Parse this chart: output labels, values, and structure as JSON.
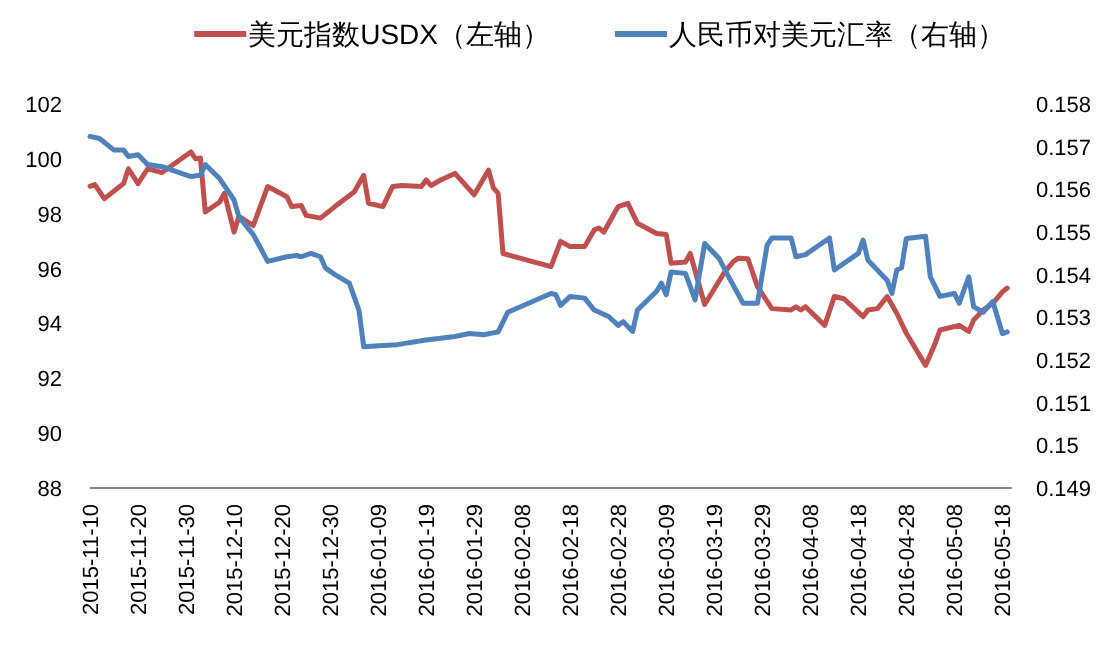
{
  "chart_data": {
    "type": "line",
    "legend": "top",
    "grid": false,
    "marker": "none",
    "line_style": "solid",
    "xlim": [
      "2015-11-10",
      "2016-05-20"
    ],
    "xticks": [
      "2015-11-10",
      "2015-11-20",
      "2015-11-30",
      "2015-12-10",
      "2015-12-20",
      "2015-12-30",
      "2016-01-09",
      "2016-01-19",
      "2016-01-29",
      "2016-02-08",
      "2016-02-18",
      "2016-02-28",
      "2016-03-09",
      "2016-03-19",
      "2016-03-29",
      "2016-04-08",
      "2016-04-18",
      "2016-04-28",
      "2016-05-08",
      "2016-05-18"
    ],
    "ylim": [
      88,
      102
    ],
    "yticks": [
      88,
      90,
      92,
      94,
      96,
      98,
      100,
      102
    ],
    "y2lim": [
      0.149,
      0.158
    ],
    "y2ticks": [
      0.149,
      0.15,
      0.151,
      0.152,
      0.153,
      0.154,
      0.155,
      0.156,
      0.157,
      0.158
    ],
    "series": [
      {
        "name": "美元指数USDX（左轴）",
        "color": "#c0504d",
        "axis": "y",
        "x": [
          "2015-11-10",
          "2015-11-11",
          "2015-11-13",
          "2015-11-17",
          "2015-11-18",
          "2015-11-20",
          "2015-11-22",
          "2015-11-25",
          "2015-12-01",
          "2015-12-02",
          "2015-12-03",
          "2015-12-04",
          "2015-12-07",
          "2015-12-08",
          "2015-12-10",
          "2015-12-11",
          "2015-12-14",
          "2015-12-17",
          "2015-12-21",
          "2015-12-22",
          "2015-12-24",
          "2015-12-25",
          "2015-12-28",
          "2015-12-31",
          "2016-01-04",
          "2016-01-06",
          "2016-01-07",
          "2016-01-10",
          "2016-01-12",
          "2016-01-14",
          "2016-01-18",
          "2016-01-19",
          "2016-01-20",
          "2016-01-22",
          "2016-01-25",
          "2016-01-29",
          "2016-02-01",
          "2016-02-02",
          "2016-02-03",
          "2016-02-04",
          "2016-02-14",
          "2016-02-16",
          "2016-02-18",
          "2016-02-21",
          "2016-02-23",
          "2016-02-24",
          "2016-02-25",
          "2016-02-28",
          "2016-03-01",
          "2016-03-03",
          "2016-03-07",
          "2016-03-09",
          "2016-03-10",
          "2016-03-13",
          "2016-03-14",
          "2016-03-17",
          "2016-03-21",
          "2016-03-23",
          "2016-03-24",
          "2016-03-26",
          "2016-03-28",
          "2016-03-31",
          "2016-04-04",
          "2016-04-05",
          "2016-04-06",
          "2016-04-07",
          "2016-04-11",
          "2016-04-13",
          "2016-04-15",
          "2016-04-19",
          "2016-04-20",
          "2016-04-22",
          "2016-04-24",
          "2016-04-26",
          "2016-04-28",
          "2016-05-02",
          "2016-05-04",
          "2016-05-05",
          "2016-05-09",
          "2016-05-11",
          "2016-05-12",
          "2016-05-14",
          "2016-05-16",
          "2016-05-18",
          "2016-05-19"
        ],
        "values": [
          99.0,
          99.06,
          98.55,
          99.1,
          99.64,
          99.1,
          99.64,
          99.5,
          100.25,
          100.0,
          100.03,
          98.06,
          98.43,
          98.74,
          97.33,
          97.9,
          97.57,
          98.99,
          98.62,
          98.26,
          98.3,
          97.94,
          97.84,
          98.26,
          98.79,
          99.4,
          98.38,
          98.26,
          98.99,
          99.03,
          98.99,
          99.23,
          99.03,
          99.23,
          99.47,
          98.69,
          99.59,
          98.94,
          98.74,
          96.55,
          96.07,
          96.99,
          96.8,
          96.8,
          97.41,
          97.48,
          97.33,
          98.26,
          98.38,
          97.65,
          97.28,
          97.24,
          96.19,
          96.24,
          96.55,
          94.69,
          95.83,
          96.26,
          96.38,
          96.36,
          95.34,
          94.54,
          94.49,
          94.61,
          94.49,
          94.61,
          93.93,
          94.98,
          94.9,
          94.25,
          94.49,
          94.54,
          94.98,
          94.37,
          93.64,
          92.47,
          93.27,
          93.76,
          93.93,
          93.71,
          94.12,
          94.49,
          94.73,
          95.15,
          95.29
        ]
      },
      {
        "name": "人民币对美元汇率（右轴）",
        "color": "#4f81bd",
        "axis": "y2",
        "x": [
          "2015-11-10",
          "2015-11-12",
          "2015-11-15",
          "2015-11-17",
          "2015-11-18",
          "2015-11-20",
          "2015-11-22",
          "2015-11-25",
          "2015-12-01",
          "2015-12-03",
          "2015-12-04",
          "2015-12-07",
          "2015-12-10",
          "2015-12-11",
          "2015-12-14",
          "2015-12-15",
          "2015-12-17",
          "2015-12-21",
          "2015-12-23",
          "2015-12-24",
          "2015-12-26",
          "2015-12-28",
          "2015-12-29",
          "2015-12-31",
          "2016-01-03",
          "2016-01-05",
          "2016-01-06",
          "2016-01-10",
          "2016-01-13",
          "2016-01-19",
          "2016-01-25",
          "2016-01-28",
          "2016-01-31",
          "2016-02-03",
          "2016-02-05",
          "2016-02-14",
          "2016-02-15",
          "2016-02-16",
          "2016-02-18",
          "2016-02-21",
          "2016-02-23",
          "2016-02-26",
          "2016-02-28",
          "2016-02-29",
          "2016-03-02",
          "2016-03-03",
          "2016-03-07",
          "2016-03-08",
          "2016-03-09",
          "2016-03-10",
          "2016-03-13",
          "2016-03-15",
          "2016-03-17",
          "2016-03-20",
          "2016-03-22",
          "2016-03-25",
          "2016-03-28",
          "2016-03-30",
          "2016-03-31",
          "2016-04-04",
          "2016-04-05",
          "2016-04-07",
          "2016-04-12",
          "2016-04-13",
          "2016-04-18",
          "2016-04-19",
          "2016-04-20",
          "2016-04-24",
          "2016-04-25",
          "2016-04-26",
          "2016-04-27",
          "2016-04-28",
          "2016-05-02",
          "2016-05-03",
          "2016-05-05",
          "2016-05-08",
          "2016-05-09",
          "2016-05-11",
          "2016-05-12",
          "2016-05-14",
          "2016-05-16",
          "2016-05-18",
          "2016-05-19"
        ],
        "values": [
          0.15724,
          0.15719,
          0.15692,
          0.15692,
          0.15677,
          0.15681,
          0.15658,
          0.15653,
          0.1563,
          0.15633,
          0.15658,
          0.15625,
          0.15575,
          0.15536,
          0.15494,
          0.15473,
          0.15431,
          0.15442,
          0.15445,
          0.15442,
          0.1545,
          0.15442,
          0.15416,
          0.154,
          0.1538,
          0.15317,
          0.15231,
          0.15234,
          0.15236,
          0.15247,
          0.15255,
          0.15262,
          0.15259,
          0.15266,
          0.15312,
          0.15356,
          0.15353,
          0.15328,
          0.15349,
          0.15345,
          0.15317,
          0.15302,
          0.15281,
          0.1529,
          0.15267,
          0.15317,
          0.15361,
          0.1538,
          0.15353,
          0.15406,
          0.15403,
          0.15341,
          0.15473,
          0.15438,
          0.15395,
          0.15333,
          0.15333,
          0.15469,
          0.15486,
          0.15486,
          0.15442,
          0.15447,
          0.15486,
          0.15411,
          0.1545,
          0.15481,
          0.15434,
          0.15387,
          0.15356,
          0.15411,
          0.15416,
          0.15485,
          0.1549,
          0.15395,
          0.15349,
          0.15356,
          0.15333,
          0.15395,
          0.15325,
          0.15312,
          0.15337,
          0.15262,
          0.15266
        ]
      }
    ]
  }
}
